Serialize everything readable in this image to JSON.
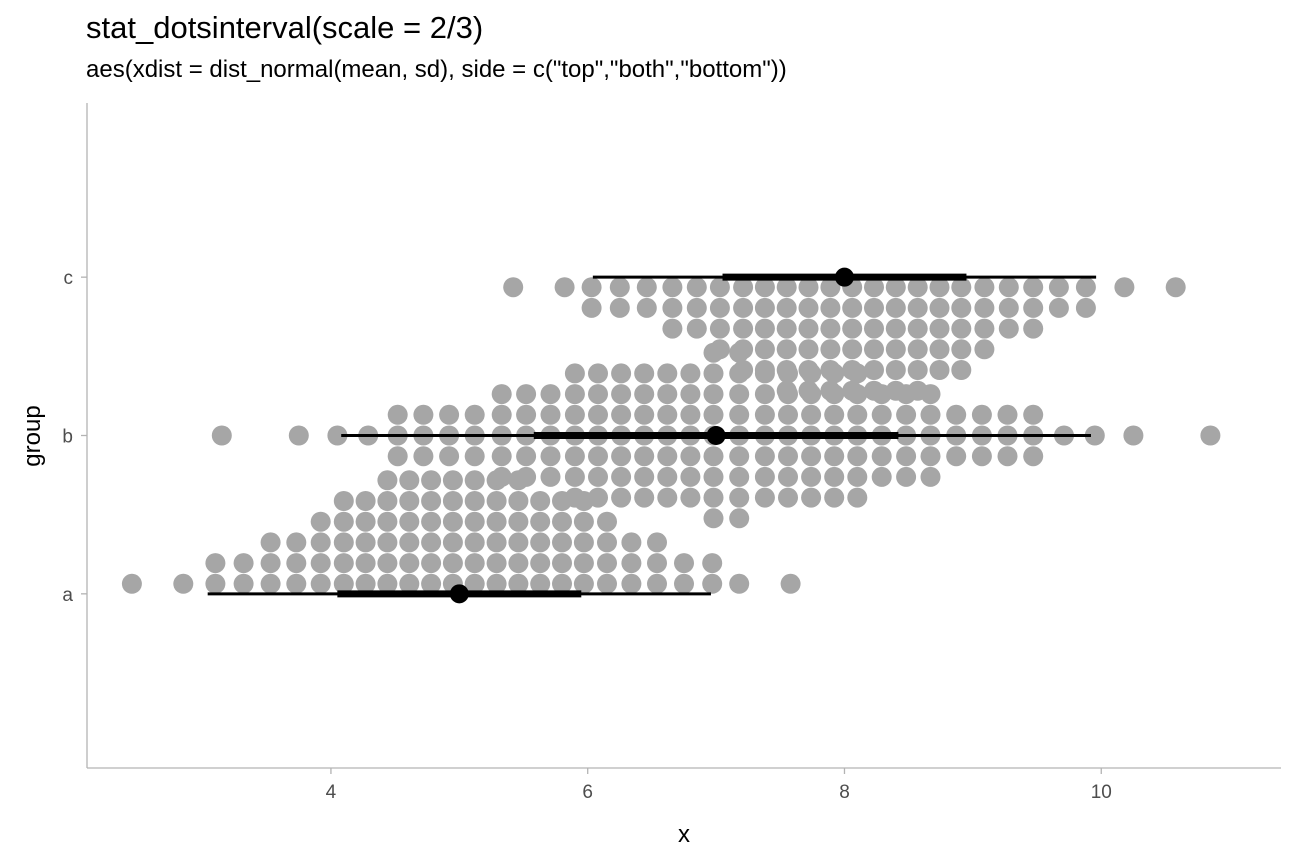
{
  "title": "stat_dotsinterval(scale = 2/3)",
  "subtitle": "aes(xdist = dist_normal(mean, sd), side = c(\"top\",\"both\",\"bottom\"))",
  "colors": {
    "dots": "#a6a6a6",
    "interval": "#000000",
    "point": "#000000",
    "axis": "#b3b3b3",
    "text": "#4d4d4d"
  },
  "chart_data": {
    "type": "dotsinterval",
    "xlabel": "x",
    "ylabel": "group",
    "xlim": [
      2.1,
      11.4
    ],
    "x_ticks": [
      4,
      6,
      8,
      10
    ],
    "categories": [
      "a",
      "b",
      "c"
    ],
    "grid": false,
    "groups": [
      {
        "name": "a",
        "side": "top",
        "point": 5,
        "interval_66": [
          4.05,
          5.95
        ],
        "interval_95": [
          3.04,
          6.96
        ],
        "dot_columns": [
          {
            "x": 2.45,
            "count": 1
          },
          {
            "x": 2.85,
            "count": 1
          },
          {
            "x": 3.1,
            "count": 2
          },
          {
            "x": 3.32,
            "count": 2
          },
          {
            "x": 3.53,
            "count": 3
          },
          {
            "x": 3.73,
            "count": 3
          },
          {
            "x": 3.92,
            "count": 4
          },
          {
            "x": 4.1,
            "count": 5
          },
          {
            "x": 4.27,
            "count": 5
          },
          {
            "x": 4.44,
            "count": 6
          },
          {
            "x": 4.61,
            "count": 6
          },
          {
            "x": 4.78,
            "count": 6
          },
          {
            "x": 4.95,
            "count": 6
          },
          {
            "x": 5.12,
            "count": 6
          },
          {
            "x": 5.29,
            "count": 6
          },
          {
            "x": 5.46,
            "count": 6
          },
          {
            "x": 5.63,
            "count": 5
          },
          {
            "x": 5.8,
            "count": 5
          },
          {
            "x": 5.97,
            "count": 5
          },
          {
            "x": 6.15,
            "count": 4
          },
          {
            "x": 6.34,
            "count": 3
          },
          {
            "x": 6.54,
            "count": 3
          },
          {
            "x": 6.75,
            "count": 2
          },
          {
            "x": 6.97,
            "count": 2
          },
          {
            "x": 7.18,
            "count": 1
          },
          {
            "x": 7.58,
            "count": 1
          }
        ]
      },
      {
        "name": "b",
        "side": "both",
        "point": 7,
        "interval_66": [
          5.58,
          8.42
        ],
        "interval_95": [
          4.08,
          9.92
        ],
        "dot_columns": [
          {
            "x": 3.15,
            "count": 1
          },
          {
            "x": 3.75,
            "count": 1
          },
          {
            "x": 4.05,
            "count": 1
          },
          {
            "x": 4.29,
            "count": 1
          },
          {
            "x": 4.52,
            "count": 3
          },
          {
            "x": 4.72,
            "count": 3
          },
          {
            "x": 4.92,
            "count": 3
          },
          {
            "x": 5.12,
            "count": 3
          },
          {
            "x": 5.33,
            "count": 5
          },
          {
            "x": 5.52,
            "count": 5
          },
          {
            "x": 5.71,
            "count": 5
          },
          {
            "x": 5.9,
            "count": 7
          },
          {
            "x": 6.08,
            "count": 7
          },
          {
            "x": 6.26,
            "count": 7
          },
          {
            "x": 6.44,
            "count": 7
          },
          {
            "x": 6.62,
            "count": 7
          },
          {
            "x": 6.8,
            "count": 7
          },
          {
            "x": 6.98,
            "count": 9
          },
          {
            "x": 7.18,
            "count": 9
          },
          {
            "x": 7.38,
            "count": 7
          },
          {
            "x": 7.56,
            "count": 7
          },
          {
            "x": 7.74,
            "count": 7
          },
          {
            "x": 7.92,
            "count": 7
          },
          {
            "x": 8.1,
            "count": 7
          },
          {
            "x": 8.29,
            "count": 5
          },
          {
            "x": 8.48,
            "count": 5
          },
          {
            "x": 8.67,
            "count": 5
          },
          {
            "x": 8.87,
            "count": 3
          },
          {
            "x": 9.07,
            "count": 3
          },
          {
            "x": 9.27,
            "count": 3
          },
          {
            "x": 9.47,
            "count": 3
          },
          {
            "x": 9.71,
            "count": 1
          },
          {
            "x": 9.95,
            "count": 1
          },
          {
            "x": 10.25,
            "count": 1
          },
          {
            "x": 10.85,
            "count": 1
          }
        ]
      },
      {
        "name": "c",
        "side": "bottom",
        "point": 8,
        "interval_66": [
          7.05,
          8.95
        ],
        "interval_95": [
          6.04,
          9.96
        ],
        "dot_columns": [
          {
            "x": 5.42,
            "count": 1
          },
          {
            "x": 5.82,
            "count": 1
          },
          {
            "x": 6.03,
            "count": 2
          },
          {
            "x": 6.25,
            "count": 2
          },
          {
            "x": 6.46,
            "count": 2
          },
          {
            "x": 6.66,
            "count": 3
          },
          {
            "x": 6.85,
            "count": 3
          },
          {
            "x": 7.03,
            "count": 4
          },
          {
            "x": 7.21,
            "count": 5
          },
          {
            "x": 7.38,
            "count": 5
          },
          {
            "x": 7.55,
            "count": 6
          },
          {
            "x": 7.72,
            "count": 6
          },
          {
            "x": 7.89,
            "count": 6
          },
          {
            "x": 8.06,
            "count": 6
          },
          {
            "x": 8.23,
            "count": 6
          },
          {
            "x": 8.4,
            "count": 6
          },
          {
            "x": 8.57,
            "count": 6
          },
          {
            "x": 8.74,
            "count": 5
          },
          {
            "x": 8.91,
            "count": 5
          },
          {
            "x": 9.09,
            "count": 4
          },
          {
            "x": 9.28,
            "count": 3
          },
          {
            "x": 9.47,
            "count": 3
          },
          {
            "x": 9.67,
            "count": 2
          },
          {
            "x": 9.88,
            "count": 2
          },
          {
            "x": 10.18,
            "count": 1
          },
          {
            "x": 10.58,
            "count": 1
          }
        ]
      }
    ]
  }
}
